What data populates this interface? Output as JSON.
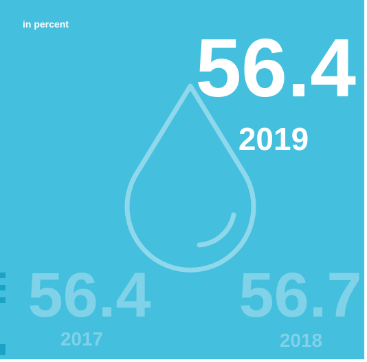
{
  "unit_label": "in percent",
  "current": {
    "value": 56.4,
    "year": 2019
  },
  "previous": [
    {
      "value": 56.4,
      "year": 2017
    },
    {
      "value": 56.7,
      "year": 2018
    }
  ]
}
